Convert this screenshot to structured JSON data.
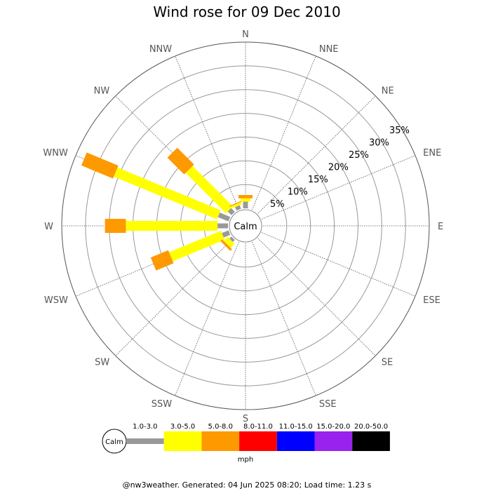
{
  "chart_data": {
    "type": "windrose",
    "title": "Wind rose for 09 Dec 2010",
    "directions": [
      "N",
      "NNE",
      "NE",
      "ENE",
      "E",
      "ESE",
      "SE",
      "SSE",
      "S",
      "SSW",
      "SW",
      "WSW",
      "W",
      "WNW",
      "NW",
      "NNW"
    ],
    "rings": [
      5,
      10,
      15,
      20,
      25,
      30,
      35
    ],
    "ring_labels": [
      "5%",
      "10%",
      "15%",
      "20%",
      "25%",
      "30%",
      "35%"
    ],
    "rmax": 35,
    "calm_label": "Calm",
    "speed_bins": [
      {
        "range": "1.0-3.0",
        "color": "#999999"
      },
      {
        "range": "3.0-5.0",
        "color": "#ffff00"
      },
      {
        "range": "5.0-8.0",
        "color": "#ff9900"
      },
      {
        "range": "8.0-11.0",
        "color": "#ff0000"
      },
      {
        "range": "11.0-15.0",
        "color": "#0000ff"
      },
      {
        "range": "15.0-20.0",
        "color": "#9922ee"
      },
      {
        "range": "20.0-50.0",
        "color": "#000000"
      }
    ],
    "unit": "mph",
    "series": [
      {
        "direction": "WNW",
        "values": [
          2.4,
          23.5,
          7.2,
          0,
          0,
          0,
          0
        ]
      },
      {
        "direction": "W",
        "values": [
          2.2,
          19.3,
          4.4,
          0,
          0,
          0,
          0
        ]
      },
      {
        "direction": "NW",
        "values": [
          1.1,
          12.0,
          5.0,
          0,
          0,
          0,
          0
        ]
      },
      {
        "direction": "WSW",
        "values": [
          1.5,
          11.8,
          4.0,
          0,
          0,
          0,
          0
        ]
      },
      {
        "direction": "NNW",
        "values": [
          0.8,
          0.5,
          0.2,
          0,
          0,
          0,
          0
        ]
      },
      {
        "direction": "N",
        "values": [
          1.4,
          0.7,
          0.7,
          0,
          0,
          0,
          0
        ]
      },
      {
        "direction": "SW",
        "values": [
          0.6,
          1.2,
          0.5,
          0,
          0,
          0,
          0
        ]
      }
    ]
  },
  "footer": "@nw3weather. Generated: 04 Jun 2025 08:20; Load time: 1.23 s"
}
